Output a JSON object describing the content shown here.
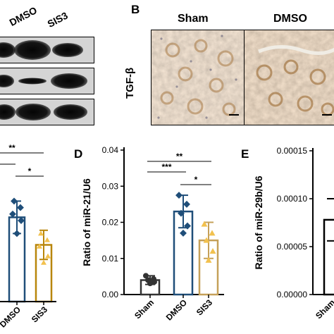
{
  "panel_a": {
    "lane_labels": [
      "DMSO",
      "SIS3"
    ],
    "band_rows": [
      {
        "intensity": [
          0.55,
          1.0,
          0.75
        ]
      },
      {
        "intensity": [
          0.45,
          0.25,
          0.9
        ]
      },
      {
        "intensity": [
          0.85,
          1.0,
          0.95
        ]
      }
    ]
  },
  "panel_b": {
    "letter": "B",
    "row_label": "TGF-β",
    "columns": [
      "Sham",
      "DMSO"
    ]
  },
  "chart_data": [
    {
      "panel": "C",
      "type": "bar",
      "title": "",
      "xlabel": "",
      "ylabel": "",
      "categories": [
        "DMSO",
        "SIS3"
      ],
      "values": [
        0.026,
        0.0175
      ],
      "errors": [
        0.005,
        0.0045
      ],
      "points": [
        [
          0.031,
          0.029,
          0.027,
          0.025,
          0.021
        ],
        [
          0.021,
          0.019,
          0.017,
          0.014,
          0.012
        ]
      ],
      "colors": [
        "#1f4e79",
        "#b8860b"
      ],
      "significance": [
        {
          "label": "**",
          "from": -1,
          "to": 1
        },
        {
          "label": "*",
          "from": -1,
          "to": 0
        },
        {
          "label": "*",
          "from": 0,
          "to": 1
        }
      ]
    },
    {
      "panel": "D",
      "letter": "D",
      "type": "bar",
      "title": "",
      "xlabel": "",
      "ylabel": "Ratio of miR-21/U6",
      "ylim": [
        0,
        0.04
      ],
      "yticks": [
        "0.00",
        "0.01",
        "0.02",
        "0.03",
        "0.04"
      ],
      "categories": [
        "Sham",
        "DMSO",
        "SIS3"
      ],
      "values": [
        0.004,
        0.023,
        0.015
      ],
      "errors": [
        0.0012,
        0.0045,
        0.005
      ],
      "points": [
        [
          0.0052,
          0.0043,
          0.004,
          0.0035,
          0.0031
        ],
        [
          0.0275,
          0.025,
          0.0225,
          0.019,
          0.017
        ],
        [
          0.0195,
          0.017,
          0.015,
          0.012,
          0.0095
        ]
      ],
      "colors": [
        "#333333",
        "#1f4e79",
        "#c5a059"
      ],
      "significance": [
        {
          "label": "**",
          "from": 0,
          "to": 2
        },
        {
          "label": "***",
          "from": 0,
          "to": 1
        },
        {
          "label": "*",
          "from": 1,
          "to": 2
        }
      ]
    },
    {
      "panel": "E",
      "letter": "E",
      "type": "bar",
      "title": "",
      "xlabel": "",
      "ylabel": "Ratio of miR-29b/U6",
      "ylim": [
        0,
        0.00015
      ],
      "yticks": [
        "0.00000",
        "0.00005",
        "0.00010",
        "0.00015"
      ],
      "categories": [
        "Sham"
      ],
      "values": [
        7.8e-05
      ],
      "errors": [
        2.2e-05
      ],
      "points": [],
      "colors": [
        "#000000"
      ],
      "significance": []
    }
  ]
}
